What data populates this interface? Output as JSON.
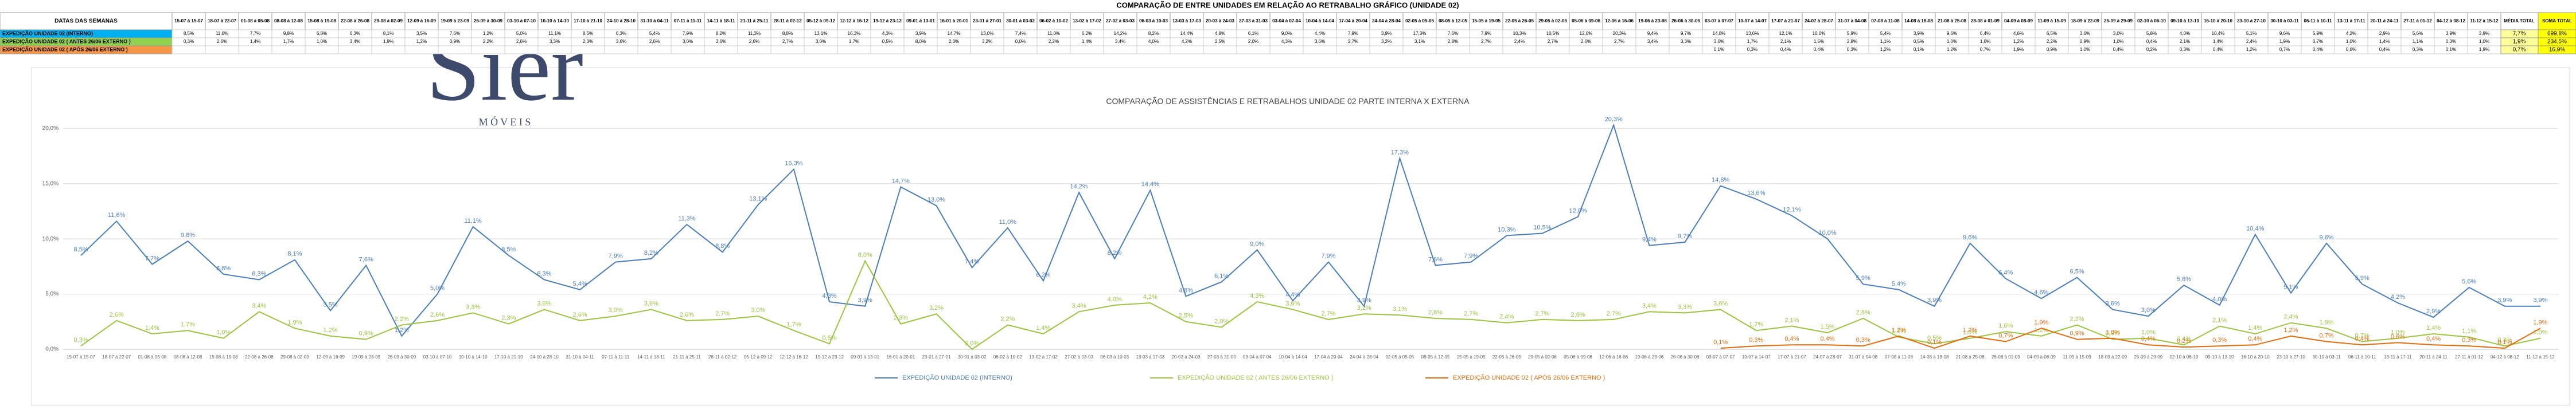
{
  "table": {
    "title": "COMPARAÇÃO DE ENTRE UNIDADES EM RELAÇÃO AO RETRABALHO GRÁFICO (UNIDADE 02)",
    "header": "DATAS DAS SEMANAS",
    "summary_headers": [
      "MÉDIA TOTAL",
      "SOMA TOTAL"
    ],
    "averages": [
      "7,7%",
      "1,9%",
      "0,7%"
    ],
    "sums": [
      "699,8%",
      "234,5%",
      "16,9%"
    ]
  },
  "logo": {
    "name": "Sier",
    "tagline": "M Ó V E I S"
  },
  "chart_data": {
    "type": "line",
    "title": "COMPARAÇÃO DE ASSISTÊNCIAS E RETRABALHOS UNIDADE 02 PARTE INTERNA X EXTERNA",
    "categories": [
      "15-07 à 15-07",
      "18-07 à 22-07",
      "01-08 à 05-08",
      "08-08 à 12-08",
      "15-08 à 19-08",
      "22-08 à 26-08",
      "29-08 à 02-09",
      "12-09 à 16-09",
      "19-09 à 23-09",
      "26-09 à 30-09",
      "03-10 à 07-10",
      "10-10 à 14-10",
      "17-10 à 21-10",
      "24-10 à 28-10",
      "31-10 à 04-11",
      "07-11 à 11-11",
      "14-11 à 18-11",
      "21-11 à 25-11",
      "28-11 à 02-12",
      "05-12 à 09-12",
      "12-12 à 16-12",
      "19-12 à 23-12",
      "09-01 à 13-01",
      "16-01 à 20-01",
      "23-01 à 27-01",
      "30-01 à 03-02",
      "06-02 à 10-02",
      "13-02 à 17-02",
      "27-02 à 03-03",
      "06-03 à 10-03",
      "13-03 à 17-03",
      "20-03 à 24-03",
      "27-03 à 31-03",
      "03-04 à 07-04",
      "10-04 à 14-04",
      "17-04 à 20-04",
      "24-04 à 28-04",
      "02-05 à 05-05",
      "08-05 à 12-05",
      "15-05 à 19-05",
      "22-05 à 26-05",
      "29-05 à 02-06",
      "05-06 à 09-06",
      "12-06 à 16-06",
      "19-06 à 23-06",
      "26-06 à 30-06",
      "03-07 à 07-07",
      "10-07 à 14-07",
      "17-07 à 21-07",
      "24-07 à 28-07",
      "31-07 à 04-08",
      "07-08 à 11-08",
      "14-08 à 18-08",
      "21-08 à 25-08",
      "28-08 à 01-09",
      "04-09 à 08-09",
      "11-09 à 15-09",
      "18-09 à 22-09",
      "25-09 à 29-09",
      "02-10 à 06-10",
      "09-10 à 13-10",
      "16-10 à 20-10",
      "23-10 à 27-10",
      "30-10 à 03-11",
      "06-11 à 10-11",
      "13-11 à 17-11",
      "20-11 à 24-11",
      "27-11 à 01-12",
      "04-12 à 08-12",
      "11-12 à 15-12"
    ],
    "series": [
      {
        "name": "EXPEDIÇÃO UNIDADE 02 (INTERNO)",
        "color": "#4a7ebb",
        "row_color": "#00b0f0",
        "values": [
          8.5,
          11.6,
          7.7,
          9.8,
          6.8,
          6.3,
          8.1,
          3.5,
          7.6,
          1.2,
          5.0,
          11.1,
          8.5,
          6.3,
          5.4,
          7.9,
          8.2,
          11.3,
          8.8,
          13.1,
          16.3,
          4.3,
          3.9,
          14.7,
          13.0,
          7.4,
          11.0,
          6.2,
          14.2,
          8.2,
          14.4,
          4.8,
          6.1,
          9.0,
          4.4,
          7.9,
          3.9,
          17.3,
          7.6,
          7.9,
          10.3,
          10.5,
          12.0,
          20.3,
          9.4,
          9.7,
          14.8,
          13.6,
          12.1,
          10.0,
          5.9,
          5.4,
          3.9,
          9.6,
          6.4,
          4.6,
          6.5,
          3.6,
          3.0,
          5.8,
          4.0,
          10.4,
          5.1,
          9.6,
          5.9,
          4.2,
          2.9,
          5.6,
          3.9,
          3.9
        ],
        "value_labels": [
          "8,5%",
          "11,6%",
          "7,7%",
          "9,8%",
          "6,8%",
          "6,3%",
          "8,1%",
          "3,5%",
          "7,6%",
          "1,2%",
          "5,0%",
          "11,1%",
          "8,5%",
          "6,3%",
          "5,4%",
          "7,9%",
          "8,2%",
          "11,3%",
          "8,8%",
          "13,1%",
          "16,3%",
          "4,3%",
          "3,9%",
          "14,7%",
          "13,0%",
          "7,4%",
          "11,0%",
          "6,2%",
          "14,2%",
          "8,2%",
          "14,4%",
          "4,8%",
          "6,1%",
          "9,0%",
          "4,4%",
          "7,9%",
          "3,9%",
          "17,3%",
          "7,6%",
          "7,9%",
          "10,3%",
          "10,5%",
          "12,0%",
          "20,3%",
          "9,4%",
          "9,7%",
          "14,8%",
          "13,6%",
          "12,1%",
          "10,0%",
          "5,9%",
          "5,4%",
          "3,9%",
          "9,6%",
          "6,4%",
          "4,6%",
          "6,5%",
          "3,6%",
          "3,0%",
          "5,8%",
          "4,0%",
          "10,4%",
          "5,1%",
          "9,6%",
          "5,9%",
          "4,2%",
          "2,9%",
          "5,6%",
          "3,9%",
          "3,9%"
        ]
      },
      {
        "name": "EXPEDIÇÃO UNIDADE 02 ( ANTES 26/06 EXTERNO )",
        "color": "#9bc53d",
        "row_color": "#92d050",
        "values": [
          0.3,
          2.6,
          1.4,
          1.7,
          1.0,
          3.4,
          1.9,
          1.2,
          0.9,
          2.2,
          2.6,
          3.3,
          2.3,
          3.6,
          2.6,
          3.0,
          3.6,
          2.6,
          2.7,
          3.0,
          1.7,
          0.5,
          8.0,
          2.3,
          3.2,
          0.0,
          2.2,
          1.4,
          3.4,
          4.0,
          4.2,
          2.5,
          2.0,
          4.3,
          3.6,
          2.7,
          3.2,
          3.1,
          2.8,
          2.7,
          2.4,
          2.7,
          2.6,
          2.7,
          3.4,
          3.3,
          3.6,
          1.7,
          2.1,
          1.5,
          2.8,
          1.1,
          0.5,
          1.0,
          1.6,
          1.2,
          2.2,
          0.9,
          1.0,
          0.4,
          2.1,
          1.4,
          2.4,
          1.9,
          0.7,
          1.0,
          1.4,
          1.1,
          0.3,
          1.0
        ],
        "value_labels": [
          "0,3%",
          "2,6%",
          "1,4%",
          "1,7%",
          "1,0%",
          "3,4%",
          "1,9%",
          "1,2%",
          "0,9%",
          "2,2%",
          "2,6%",
          "3,3%",
          "2,3%",
          "3,6%",
          "2,6%",
          "3,0%",
          "3,6%",
          "2,6%",
          "2,7%",
          "3,0%",
          "1,7%",
          "0,5%",
          "8,0%",
          "2,3%",
          "3,2%",
          "0,0%",
          "2,2%",
          "1,4%",
          "3,4%",
          "4,0%",
          "4,2%",
          "2,5%",
          "2,0%",
          "4,3%",
          "3,6%",
          "2,7%",
          "3,2%",
          "3,1%",
          "2,8%",
          "2,7%",
          "2,4%",
          "2,7%",
          "2,6%",
          "2,7%",
          "3,4%",
          "3,3%",
          "3,6%",
          "1,7%",
          "2,1%",
          "1,5%",
          "2,8%",
          "1,1%",
          "0,5%",
          "1,0%",
          "1,6%",
          "1,2%",
          "2,2%",
          "0,9%",
          "1,0%",
          "0,4%",
          "2,1%",
          "1,4%",
          "2,4%",
          "1,9%",
          "0,7%",
          "1,0%",
          "1,4%",
          "1,1%",
          "0,3%",
          "1,0%"
        ]
      },
      {
        "name": "EXPEDIÇÃO UNIDADE 02 ( APÓS 26/06 EXTERNO )",
        "color": "#e46c0a",
        "row_color": "#f79646",
        "values": [
          null,
          null,
          null,
          null,
          null,
          null,
          null,
          null,
          null,
          null,
          null,
          null,
          null,
          null,
          null,
          null,
          null,
          null,
          null,
          null,
          null,
          null,
          null,
          null,
          null,
          null,
          null,
          null,
          null,
          null,
          null,
          null,
          null,
          null,
          null,
          null,
          null,
          null,
          null,
          null,
          null,
          null,
          null,
          null,
          null,
          null,
          0.1,
          0.3,
          0.4,
          0.4,
          0.3,
          1.2,
          0.1,
          1.2,
          0.7,
          1.9,
          0.9,
          1.0,
          0.4,
          0.2,
          0.3,
          0.4,
          1.2,
          0.7,
          0.4,
          0.6,
          0.4,
          0.3,
          0.1,
          1.9
        ],
        "value_labels": [
          null,
          null,
          null,
          null,
          null,
          null,
          null,
          null,
          null,
          null,
          null,
          null,
          null,
          null,
          null,
          null,
          null,
          null,
          null,
          null,
          null,
          null,
          null,
          null,
          null,
          null,
          null,
          null,
          null,
          null,
          null,
          null,
          null,
          null,
          null,
          null,
          null,
          null,
          null,
          null,
          null,
          null,
          null,
          null,
          null,
          null,
          "0,1%",
          "0,3%",
          "0,4%",
          "0,4%",
          "0,3%",
          "1,2%",
          "0,1%",
          "1,2%",
          "0,7%",
          "1,9%",
          "0,9%",
          "1,0%",
          "0,4%",
          "0,2%",
          "0,3%",
          "0,4%",
          "1,2%",
          "0,7%",
          "0,4%",
          "0,6%",
          "0,4%",
          "0,3%",
          "0,1%",
          "1,9%"
        ]
      }
    ],
    "ylim": [
      0,
      21
    ],
    "yticks": [
      {
        "value": 0,
        "label": "0,0%"
      },
      {
        "value": 5,
        "label": "5,0%"
      },
      {
        "value": 10,
        "label": "10,0%"
      },
      {
        "value": 15,
        "label": "15,0%"
      },
      {
        "value": 20,
        "label": "20,0%"
      }
    ],
    "grid": true,
    "legend": "bottom"
  }
}
